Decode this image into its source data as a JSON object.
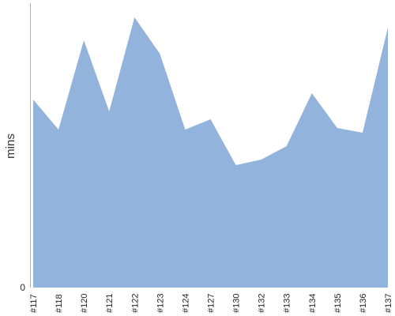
{
  "chart_data": {
    "type": "area",
    "title": "",
    "xlabel": "",
    "ylabel": "mins",
    "categories": [
      "#117",
      "#118",
      "#120",
      "#121",
      "#122",
      "#123",
      "#124",
      "#127",
      "#130",
      "#132",
      "#133",
      "#134",
      "#135",
      "#136",
      "#137"
    ],
    "series": [
      {
        "values": [
          238,
          200,
          313,
          223,
          342,
          296,
          200,
          213,
          155,
          162,
          179,
          246,
          202,
          196,
          329
        ]
      }
    ],
    "ylim": [
      0,
      360
    ],
    "y_ticks": [
      "0"
    ],
    "grid": false,
    "legend": "none",
    "colors": {
      "area_fill": "#92b3dc",
      "axis": "#b0b0b0"
    }
  }
}
